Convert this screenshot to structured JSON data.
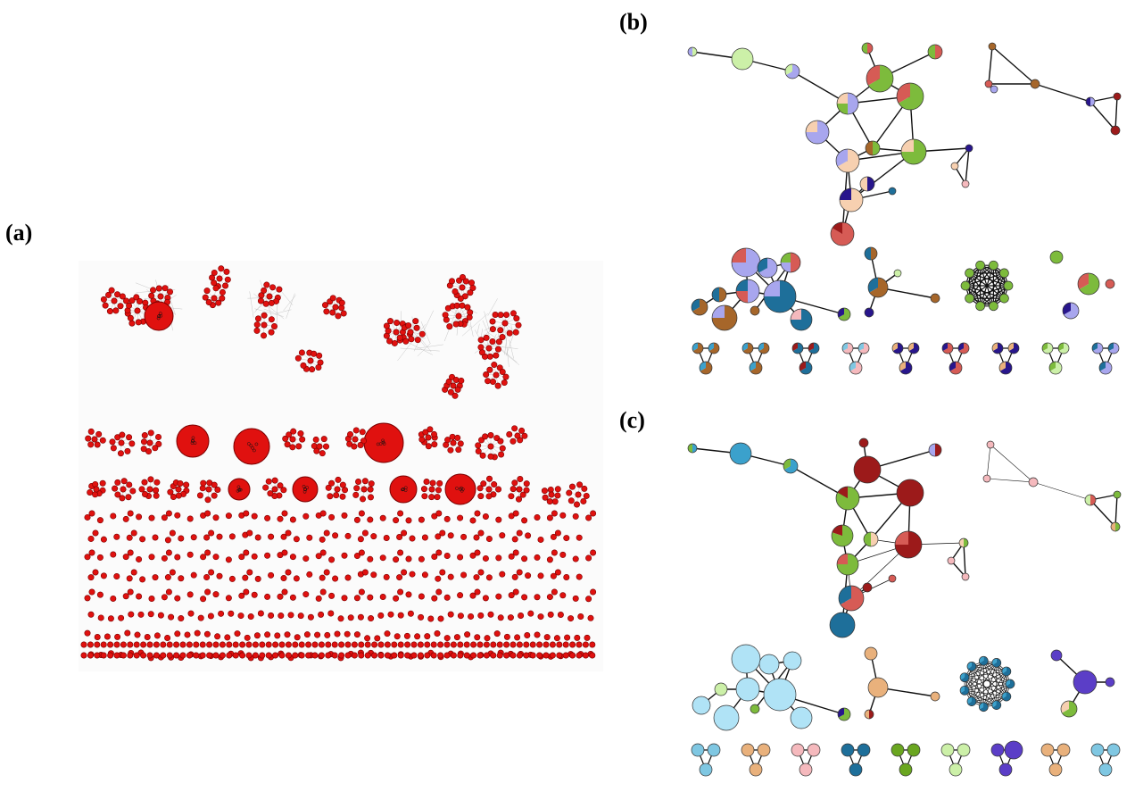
{
  "figure": {
    "panels": [
      {
        "id": "a",
        "label": "(a)"
      },
      {
        "id": "b",
        "label": "(b)"
      },
      {
        "id": "c",
        "label": "(c)"
      }
    ]
  },
  "colors": {
    "panel_a_node": "#e0110f",
    "panel_a_edge": "#b9b9b9",
    "palette": [
      "#ccf0a8",
      "#a8a6ee",
      "#f7d0b0",
      "#d65b55",
      "#7dbb3c",
      "#1e6f9a",
      "#a6662a",
      "#28168c",
      "#f5b9bd",
      "#9c1a1a",
      "#3ba1cc",
      "#e9b17c",
      "#7fc7e2",
      "#5b3ec7",
      "#b0e3f6",
      "#6aa620"
    ]
  }
}
